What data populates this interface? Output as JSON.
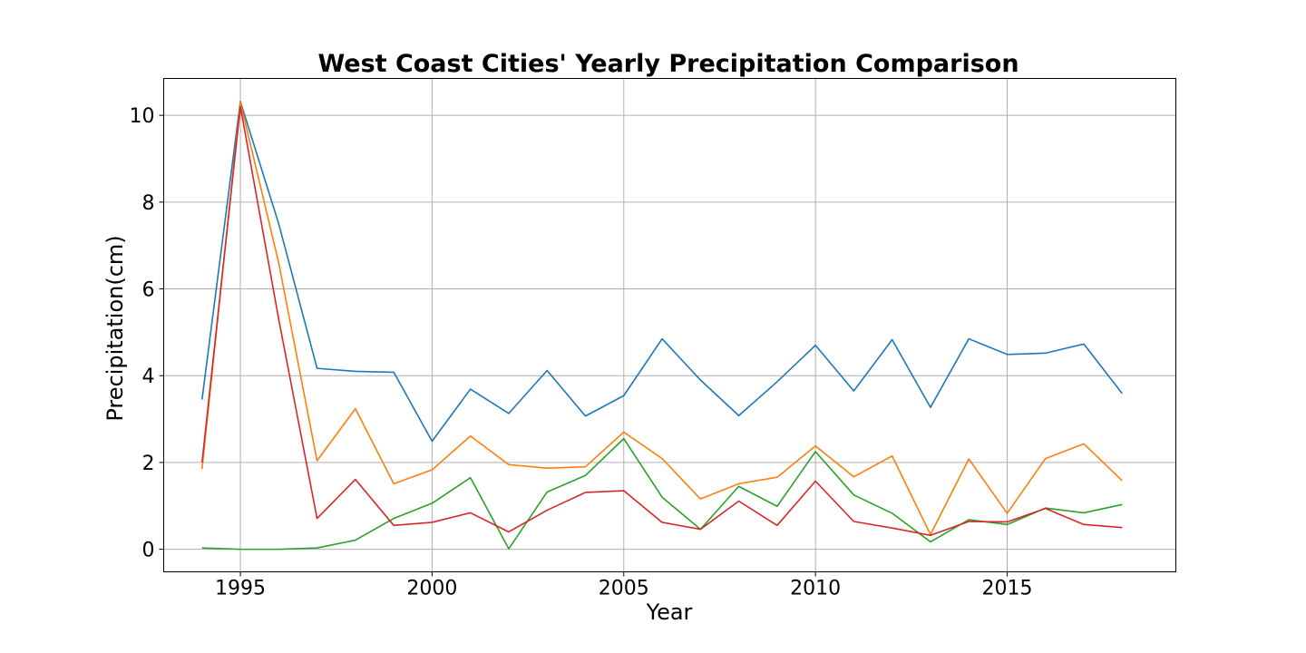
{
  "chart_data": {
    "type": "line",
    "title": "West Coast Cities' Yearly Precipitation Comparison",
    "xlabel": "Year",
    "ylabel": "Precipitation(cm)",
    "xlim": [
      1993,
      2019.4
    ],
    "ylim": [
      -0.52,
      10.85
    ],
    "x_ticks": [
      1995,
      2000,
      2005,
      2010,
      2015
    ],
    "y_ticks": [
      0,
      2,
      4,
      6,
      8,
      10
    ],
    "grid": true,
    "legend": "none",
    "x": [
      1994,
      1995,
      1996,
      1997,
      1998,
      1999,
      2000,
      2001,
      2002,
      2003,
      2004,
      2005,
      2006,
      2007,
      2008,
      2009,
      2010,
      2011,
      2012,
      2013,
      2014,
      2015,
      2016,
      2017,
      2018
    ],
    "series": [
      {
        "color": "#1f77b4",
        "values": [
          3.45,
          10.32,
          7.5,
          4.17,
          4.1,
          4.08,
          2.49,
          3.69,
          3.13,
          4.12,
          3.07,
          3.54,
          4.85,
          3.9,
          3.08,
          3.86,
          4.7,
          3.65,
          4.83,
          3.27,
          4.85,
          4.49,
          4.52,
          4.73,
          3.59
        ]
      },
      {
        "color": "#ff7f0e",
        "values": [
          1.85,
          10.3,
          6.6,
          2.04,
          3.24,
          1.51,
          1.83,
          2.61,
          1.95,
          1.87,
          1.9,
          2.7,
          2.09,
          1.16,
          1.51,
          1.66,
          2.38,
          1.67,
          2.15,
          0.34,
          2.08,
          0.83,
          2.09,
          2.43,
          1.58
        ]
      },
      {
        "color": "#2ca02c",
        "values": [
          0.03,
          0.0,
          0.0,
          0.03,
          0.21,
          0.71,
          1.06,
          1.65,
          0.01,
          1.32,
          1.7,
          2.55,
          1.2,
          0.46,
          1.45,
          0.99,
          2.25,
          1.25,
          0.83,
          0.17,
          0.68,
          0.57,
          0.95,
          0.84,
          1.03
        ]
      },
      {
        "color": "#d62728",
        "values": [
          2.0,
          10.2,
          5.3,
          0.71,
          1.61,
          0.55,
          0.62,
          0.84,
          0.4,
          0.9,
          1.31,
          1.35,
          0.62,
          0.46,
          1.11,
          0.55,
          1.57,
          0.64,
          0.49,
          0.32,
          0.64,
          0.63,
          0.94,
          0.57,
          0.5
        ]
      }
    ]
  }
}
